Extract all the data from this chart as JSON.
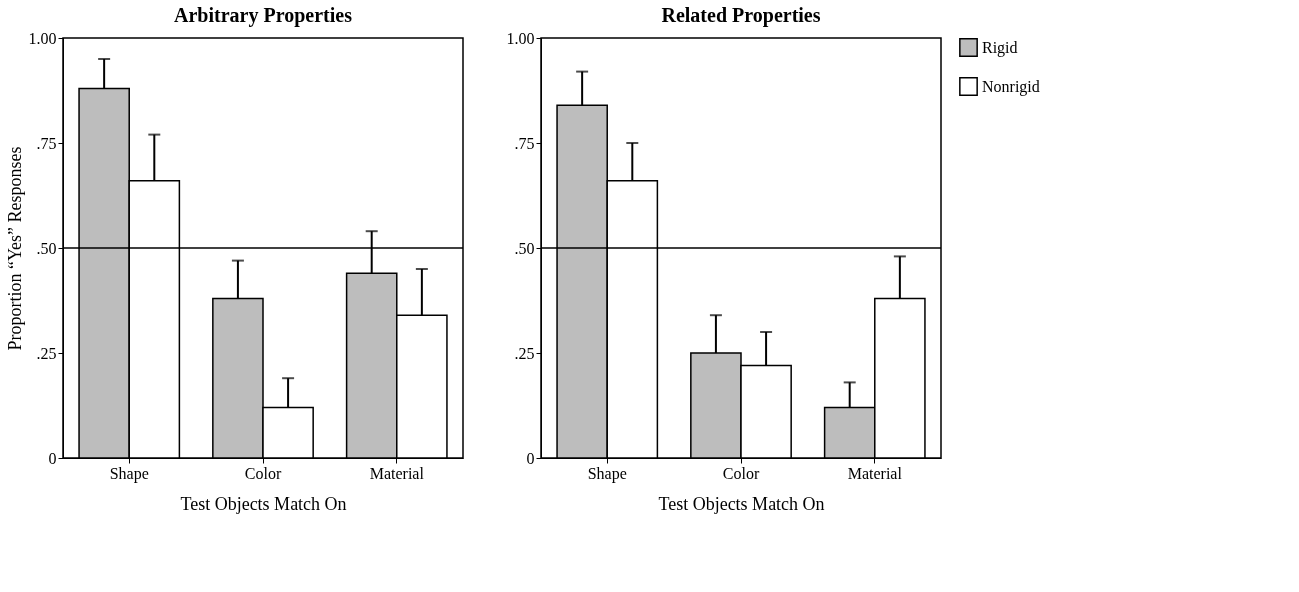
{
  "chart_data": [
    {
      "type": "bar",
      "title": "Arbitrary Properties",
      "xlabel": "Test Objects Match On",
      "ylabel": "Proportion “Yes” Responses",
      "categories": [
        "Shape",
        "Color",
        "Material"
      ],
      "series": [
        {
          "color": "#bdbdbd",
          "values": [
            0.88,
            0.38,
            0.44
          ],
          "errors": [
            [
              0.88,
              0.95
            ],
            [
              0.38,
              0.47
            ],
            [
              0.44,
              0.54
            ]
          ]
        },
        {
          "color": "#ffffff",
          "values": [
            0.66,
            0.12,
            0.34
          ],
          "errors": [
            [
              0.66,
              0.77
            ],
            [
              0.12,
              0.19
            ],
            [
              0.34,
              0.45
            ]
          ]
        }
      ],
      "ylim": [
        0,
        1
      ],
      "yticks": [
        0,
        {
          "value": 0.25,
          "label": ".25"
        },
        {
          "value": 0.5,
          "label": ".50"
        },
        {
          "value": 0.75,
          "label": ".75"
        },
        {
          "value": 1,
          "label": "1.00"
        }
      ],
      "ref_lines": [
        {
          "axis": "y",
          "value": 0.5
        }
      ],
      "grid": false,
      "legend": false
    },
    {
      "type": "bar",
      "title": "Related Properties",
      "xlabel": "Test Objects Match On",
      "categories": [
        "Shape",
        "Color",
        "Material"
      ],
      "series": [
        {
          "name": "Rigid",
          "color": "#bdbdbd",
          "values": [
            0.84,
            0.25,
            0.12
          ],
          "errors": [
            [
              0.84,
              0.92
            ],
            [
              0.25,
              0.34
            ],
            [
              0.12,
              0.18
            ]
          ]
        },
        {
          "name": "Nonrigid",
          "color": "#ffffff",
          "values": [
            0.66,
            0.22,
            0.38
          ],
          "errors": [
            [
              0.66,
              0.75
            ],
            [
              0.22,
              0.3
            ],
            [
              0.38,
              0.48
            ]
          ]
        }
      ],
      "ylim": [
        0,
        1
      ],
      "yticks": [
        0,
        {
          "value": 0.25,
          "label": ".25"
        },
        {
          "value": 0.5,
          "label": ".50"
        },
        {
          "value": 0.75,
          "label": ".75"
        },
        {
          "value": 1,
          "label": "1.00"
        }
      ],
      "ref_lines": [
        {
          "axis": "y",
          "value": 0.5
        }
      ],
      "grid": false,
      "legend": "right"
    }
  ]
}
